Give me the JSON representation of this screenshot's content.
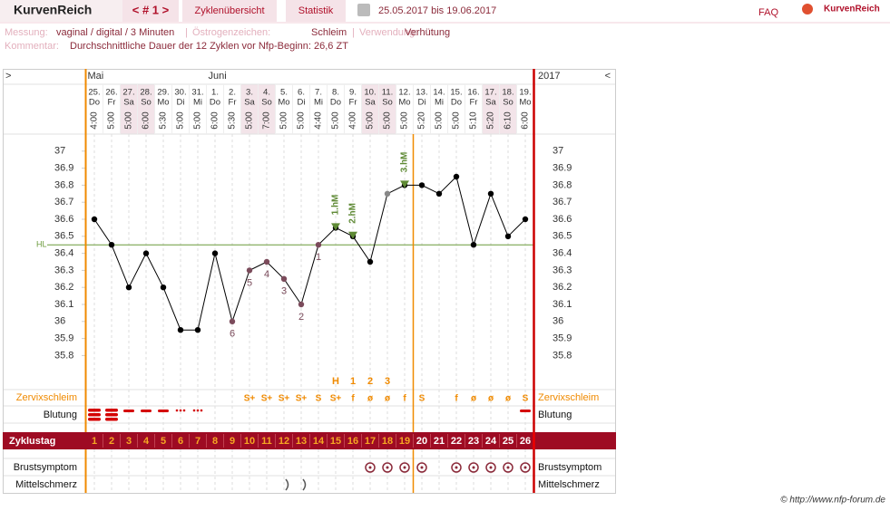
{
  "header": {
    "logo": "KurvenReich",
    "cycle_nav": "< # 1 >",
    "tabs": [
      "Zyklenübersicht",
      "Statistik"
    ],
    "range": "25.05.2017 bis 19.06.2017",
    "faq": "FAQ",
    "brand": "KurvenReich"
  },
  "info": {
    "measure_label": "Messung:",
    "measure": "vaginal / digital / 3 Minuten",
    "sep": "|",
    "estrogen_label": "Östrogenzeichen:",
    "estrogen": "Schleim",
    "usage_label": "Verwendung:",
    "usage": "Verhütung",
    "comment_label": "Kommentar:",
    "comment": "Durchschnittliche Dauer der 12 Zyklen vor Nfp-Beginn: 26,6 ZT"
  },
  "chart_data": {
    "type": "line",
    "nav_prev": ">",
    "nav_next": "<",
    "year": "2017",
    "months": [
      "Mai",
      null,
      null,
      null,
      null,
      null,
      null,
      "Juni",
      null,
      null,
      null,
      null,
      null,
      null,
      null,
      null,
      null,
      null,
      null,
      null,
      null,
      null,
      null,
      null,
      null,
      null
    ],
    "dates": [
      "25.",
      "26.",
      "27.",
      "28.",
      "29.",
      "30.",
      "31.",
      "1.",
      "2.",
      "3.",
      "4.",
      "5.",
      "6.",
      "7.",
      "8.",
      "9.",
      "10.",
      "11.",
      "12.",
      "13.",
      "14.",
      "15.",
      "16.",
      "17.",
      "18.",
      "19."
    ],
    "weekdays": [
      "Do",
      "Fr",
      "Sa",
      "So",
      "Mo",
      "Di",
      "Mi",
      "Do",
      "Fr",
      "Sa",
      "So",
      "Mo",
      "Di",
      "Mi",
      "Do",
      "Fr",
      "Sa",
      "So",
      "Mo",
      "Di",
      "Mi",
      "Do",
      "Fr",
      "Sa",
      "So",
      "Mo"
    ],
    "times": [
      "4:00",
      "5:00",
      "5:00",
      "6:00",
      "5:30",
      "5:00",
      "5:00",
      "6:00",
      "5:30",
      "5:00",
      "7:00",
      "5:00",
      "5:00",
      "4:40",
      "5:00",
      "4:00",
      "5:00",
      "5:00",
      "5:00",
      "5:20",
      "5:00",
      "5:00",
      "5:10",
      "5:20",
      "6:10",
      "6:00"
    ],
    "ylim": [
      35.6,
      37.1
    ],
    "yticks": [
      37,
      36.9,
      36.8,
      36.7,
      36.6,
      36.5,
      36.4,
      36.3,
      36.2,
      36.1,
      36,
      35.9,
      35.8
    ],
    "hl": {
      "label": "HL",
      "value": 36.45,
      "color": "#6a9a3a"
    },
    "series": [
      {
        "color": "#000000",
        "values": [
          36.6,
          36.45,
          36.2,
          36.4,
          36.2,
          35.95,
          35.95,
          36.4,
          36.0,
          36.3,
          36.35,
          36.25,
          36.1,
          36.45,
          36.55,
          36.5,
          36.35,
          36.75,
          36.8,
          36.8,
          36.75,
          36.85,
          36.45,
          36.75,
          36.5,
          36.6
        ],
        "point_colors": [
          "#000",
          "#000",
          "#000",
          "#000",
          "#000",
          "#000",
          "#000",
          "#000",
          "#7b4b5b",
          "#7b4b5b",
          "#7b4b5b",
          "#7b4b5b",
          "#7b4b5b",
          "#7b4b5b",
          "#000",
          "#000",
          "#000",
          "#888",
          "#000",
          "#000",
          "#000",
          "#000",
          "#000",
          "#000",
          "#000",
          "#000"
        ],
        "point_labels": [
          null,
          null,
          null,
          null,
          null,
          null,
          null,
          null,
          "6",
          "5",
          "4",
          "3",
          "2",
          "1",
          null,
          null,
          null,
          null,
          null,
          null,
          null,
          null,
          null,
          null,
          null,
          null
        ]
      }
    ],
    "markers": [
      null,
      null,
      null,
      null,
      null,
      null,
      null,
      null,
      null,
      null,
      null,
      null,
      null,
      null,
      "1.hM",
      "2.hM",
      null,
      null,
      "3.hM",
      null,
      null,
      null,
      null,
      null,
      null,
      null
    ],
    "marker_color": "#5f8a35",
    "peak": [
      null,
      null,
      null,
      null,
      null,
      null,
      null,
      null,
      null,
      null,
      null,
      null,
      null,
      null,
      "H",
      "1",
      "2",
      "3",
      null,
      null,
      null,
      null,
      null,
      null,
      null,
      null
    ],
    "rows": {
      "cervix": {
        "label": "Zervixschleim",
        "values": [
          null,
          null,
          null,
          null,
          null,
          null,
          null,
          null,
          null,
          "S+",
          "S+",
          "S+",
          "S+",
          "S",
          "S+",
          "f",
          "ø",
          "ø",
          "f",
          "S",
          null,
          "f",
          "ø",
          "ø",
          "ø",
          "S"
        ]
      },
      "bleeding": {
        "label": "Blutung"
      },
      "cycle_day": {
        "label": "Zyklustag",
        "values": [
          1,
          2,
          3,
          4,
          5,
          6,
          7,
          8,
          9,
          10,
          11,
          12,
          13,
          14,
          15,
          16,
          17,
          18,
          19,
          20,
          21,
          22,
          23,
          24,
          25,
          26
        ]
      },
      "breast": {
        "label": "Brustsymptom"
      },
      "pain": {
        "label": "Mittelschmerz"
      }
    }
  },
  "footer": "© http://www.nfp-forum.de"
}
